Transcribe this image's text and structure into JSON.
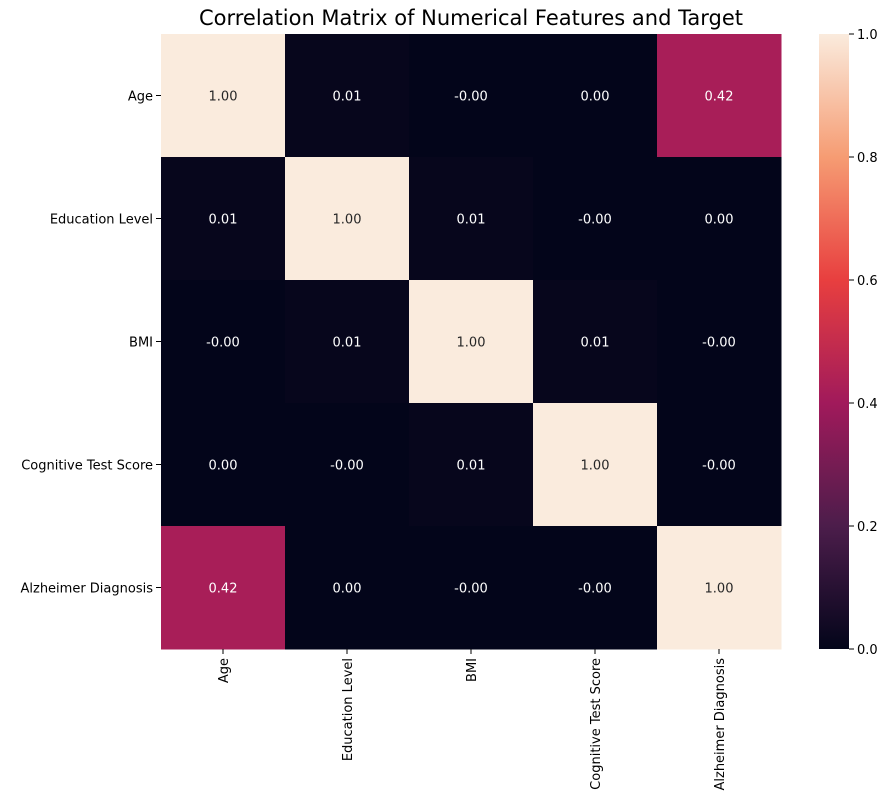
{
  "chart_data": {
    "type": "heatmap",
    "title": "Correlation Matrix of Numerical Features and Target",
    "rows": [
      "Age",
      "Education Level",
      "BMI",
      "Cognitive Test Score",
      "Alzheimer Diagnosis"
    ],
    "columns": [
      "Age",
      "Education Level",
      "BMI",
      "Cognitive Test Score",
      "Alzheimer Diagnosis"
    ],
    "values": [
      [
        1.0,
        0.01,
        -0.0,
        0.0,
        0.42
      ],
      [
        0.01,
        1.0,
        0.01,
        -0.0,
        0.0
      ],
      [
        -0.0,
        0.01,
        1.0,
        0.01,
        -0.0
      ],
      [
        0.0,
        -0.0,
        0.01,
        1.0,
        -0.0
      ],
      [
        0.42,
        0.0,
        -0.0,
        -0.0,
        1.0
      ]
    ],
    "cell_labels": [
      [
        "1.00",
        "0.01",
        "-0.00",
        "0.00",
        "0.42"
      ],
      [
        "0.01",
        "1.00",
        "0.01",
        "-0.00",
        "0.00"
      ],
      [
        "-0.00",
        "0.01",
        "1.00",
        "0.01",
        "-0.00"
      ],
      [
        "0.00",
        "-0.00",
        "0.01",
        "1.00",
        "-0.00"
      ],
      [
        "0.42",
        "0.00",
        "-0.00",
        "-0.00",
        "1.00"
      ]
    ],
    "colorbar": {
      "range": [
        0,
        1
      ],
      "ticks": [
        "0.0",
        "0.2",
        "0.4",
        "0.6",
        "0.8",
        "1.0"
      ],
      "tick_values": [
        0.0,
        0.2,
        0.4,
        0.6,
        0.8,
        1.0
      ]
    },
    "colormap": "rocket",
    "colormap_stops": [
      "#03051a",
      "#4c1d4b",
      "#a11a5b",
      "#e83f3f",
      "#f69c73",
      "#faebdd"
    ]
  }
}
